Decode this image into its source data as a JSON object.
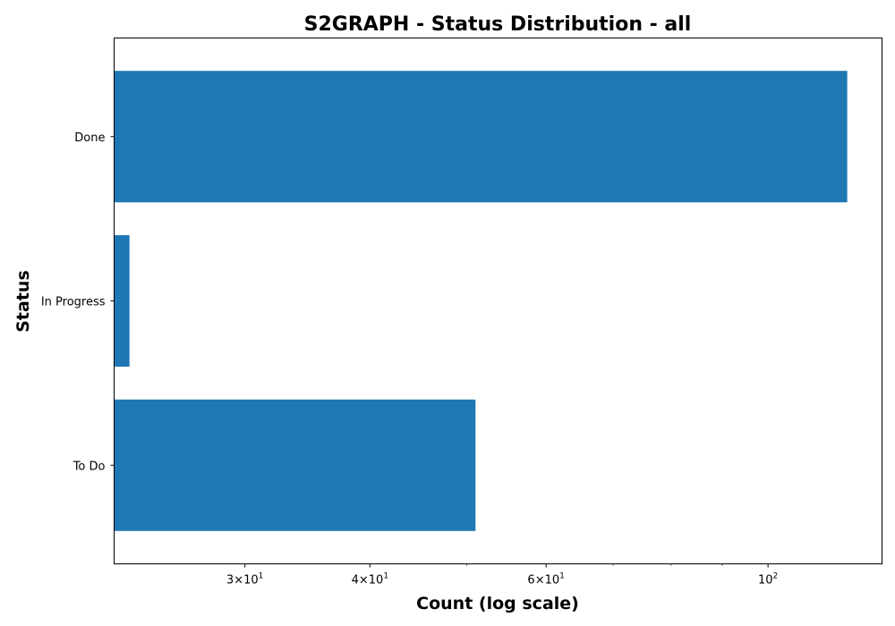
{
  "chart_data": {
    "type": "bar",
    "orientation": "horizontal",
    "title": "S2GRAPH - Status Distribution - all",
    "xlabel": "Count (log scale)",
    "ylabel": "Status",
    "xscale": "log",
    "xlim": [
      22.2,
      130
    ],
    "categories": [
      "Done",
      "In Progress",
      "To Do"
    ],
    "values": [
      120,
      23,
      51
    ],
    "bar_color": "#1f77b4",
    "grid": false,
    "x_ticks": [
      {
        "value": 30,
        "mantissa": "3",
        "base": "10",
        "exponent": "1"
      },
      {
        "value": 40,
        "mantissa": "4",
        "base": "10",
        "exponent": "1"
      },
      {
        "value": 60,
        "mantissa": "6",
        "base": "10",
        "exponent": "1"
      },
      {
        "value": 100,
        "mantissa": "",
        "base": "10",
        "exponent": "2"
      }
    ],
    "x_minor_ticks": [
      50,
      70,
      80,
      90
    ]
  }
}
